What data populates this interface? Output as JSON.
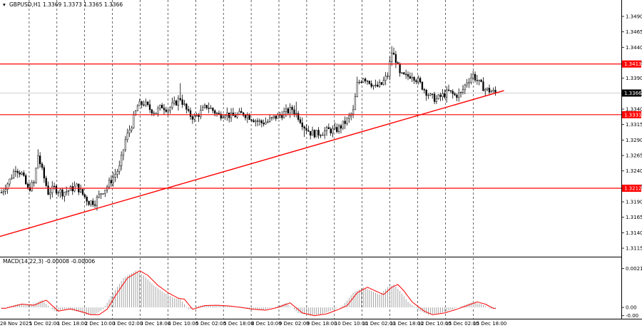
{
  "header": {
    "symbol_label": "GBPUSD,H1",
    "ohlc_label": "1.3369 1.3373 1.3365 1.3366"
  },
  "macd": {
    "label": "MACD(14,22,3) -0.00008 -0.00006"
  },
  "colors": {
    "background": "#ffffff",
    "candle": "#000000",
    "level_line": "#ff0000",
    "trend_line": "#ff0000",
    "grid": "#000000",
    "macd_hist": "#9a9a9a",
    "macd_signal": "#ff0000",
    "current_price_line": "#c0c0c0"
  },
  "chart_data": [
    {
      "type": "candlestick",
      "instrument": "GBPUSD",
      "timeframe": "H1",
      "y_tick_labels": [
        "1.3490",
        "1.3465",
        "1.3440",
        "1.3415",
        "1.3390",
        "1.3365",
        "1.3340",
        "1.3315",
        "1.3290",
        "1.3265",
        "1.3240",
        "1.3215",
        "1.3190",
        "1.3165",
        "1.3140",
        "1.3115"
      ],
      "ylim": [
        1.3107,
        1.3505
      ],
      "x_tick_labels": [
        "28 Nov 2025",
        "1 Dec 02:00",
        "1 Dec 18:00",
        "2 Dec 10:00",
        "3 Dec 02:00",
        "3 Dec 18:00",
        "4 Dec 10:00",
        "5 Dec 02:00",
        "5 Dec 18:00",
        "8 Dec 10:00",
        "9 Dec 02:00",
        "9 Dec 18:00",
        "10 Dec 10:00",
        "11 Dec 02:00",
        "11 Dec 18:00",
        "12 Dec 10:00",
        "15 Dec 02:00",
        "15 Dec 18:00"
      ],
      "horizontal_levels": [
        "1.3413",
        "1.3331",
        "1.3212"
      ],
      "current_price": "1.3366",
      "trend_line": {
        "x": [
          0,
          243
        ],
        "y": [
          1.3134,
          1.3366
        ]
      },
      "anchors": [
        [
          0,
          1.3205
        ],
        [
          4,
          1.3225
        ],
        [
          7,
          1.3245
        ],
        [
          10,
          1.3235
        ],
        [
          13,
          1.321
        ],
        [
          16,
          1.322
        ],
        [
          18,
          1.3265
        ],
        [
          20,
          1.324
        ],
        [
          23,
          1.3205
        ],
        [
          26,
          1.3212
        ],
        [
          30,
          1.3205
        ],
        [
          34,
          1.321
        ],
        [
          37,
          1.3215
        ],
        [
          40,
          1.3202
        ],
        [
          43,
          1.319
        ],
        [
          46,
          1.319
        ],
        [
          49,
          1.3205
        ],
        [
          52,
          1.3215
        ],
        [
          55,
          1.323
        ],
        [
          58,
          1.3245
        ],
        [
          61,
          1.329
        ],
        [
          64,
          1.3315
        ],
        [
          67,
          1.3345
        ],
        [
          70,
          1.335
        ],
        [
          73,
          1.334
        ],
        [
          76,
          1.3335
        ],
        [
          79,
          1.3345
        ],
        [
          82,
          1.334
        ],
        [
          85,
          1.3348
        ],
        [
          88,
          1.3358
        ],
        [
          90,
          1.3345
        ],
        [
          92,
          1.3332
        ],
        [
          95,
          1.3326
        ],
        [
          98,
          1.3335
        ],
        [
          101,
          1.3345
        ],
        [
          104,
          1.3338
        ],
        [
          107,
          1.333
        ],
        [
          110,
          1.3334
        ],
        [
          113,
          1.3328
        ],
        [
          116,
          1.333
        ],
        [
          119,
          1.3333
        ],
        [
          122,
          1.3328
        ],
        [
          125,
          1.3322
        ],
        [
          128,
          1.3318
        ],
        [
          131,
          1.332
        ],
        [
          134,
          1.3326
        ],
        [
          137,
          1.333
        ],
        [
          140,
          1.3335
        ],
        [
          143,
          1.334
        ],
        [
          146,
          1.3328
        ],
        [
          149,
          1.3312
        ],
        [
          152,
          1.3302
        ],
        [
          155,
          1.33
        ],
        [
          158,
          1.3303
        ],
        [
          161,
          1.3306
        ],
        [
          164,
          1.3305
        ],
        [
          167,
          1.3312
        ],
        [
          170,
          1.3322
        ],
        [
          173,
          1.3336
        ],
        [
          175,
          1.338
        ],
        [
          178,
          1.3392
        ],
        [
          181,
          1.3385
        ],
        [
          184,
          1.3375
        ],
        [
          187,
          1.338
        ],
        [
          190,
          1.3395
        ],
        [
          192,
          1.3432
        ],
        [
          194,
          1.342
        ],
        [
          196,
          1.3395
        ],
        [
          199,
          1.3392
        ],
        [
          202,
          1.3396
        ],
        [
          205,
          1.3385
        ],
        [
          208,
          1.3372
        ],
        [
          211,
          1.336
        ],
        [
          214,
          1.3356
        ],
        [
          217,
          1.3362
        ],
        [
          220,
          1.3368
        ],
        [
          223,
          1.3362
        ],
        [
          226,
          1.3365
        ],
        [
          229,
          1.3385
        ],
        [
          232,
          1.3395
        ],
        [
          235,
          1.3382
        ],
        [
          238,
          1.3372
        ],
        [
          241,
          1.3369
        ],
        [
          243,
          1.3366
        ]
      ],
      "spikes": [
        [
          18,
          1.3275
        ],
        [
          43,
          1.3183
        ],
        [
          88,
          1.3382
        ],
        [
          145,
          1.3352
        ],
        [
          149,
          1.3295
        ],
        [
          192,
          1.3442
        ],
        [
          213,
          1.3348
        ],
        [
          232,
          1.3402
        ]
      ]
    },
    {
      "type": "area",
      "name": "MACD(14,22,3)",
      "values": [
        "-0.00008",
        "-0.00006"
      ],
      "y_tick_labels": [
        "0.00212",
        "0.00",
        "-0.00"
      ],
      "ylim": [
        -0.0005,
        0.0023
      ],
      "anchors": [
        [
          0,
          -5e-05
        ],
        [
          8,
          0.00018
        ],
        [
          14,
          0.00012
        ],
        [
          20,
          0.0004
        ],
        [
          26,
          -0.0002
        ],
        [
          32,
          -8e-05
        ],
        [
          38,
          -0.00025
        ],
        [
          42,
          -0.0004
        ],
        [
          46,
          -0.0004
        ],
        [
          50,
          -0.0001
        ],
        [
          55,
          0.0008
        ],
        [
          60,
          0.0016
        ],
        [
          66,
          0.002
        ],
        [
          70,
          0.00175
        ],
        [
          75,
          0.0012
        ],
        [
          80,
          0.0008
        ],
        [
          85,
          0.0005
        ],
        [
          88,
          0.00045
        ],
        [
          92,
          -0.0001
        ],
        [
          98,
          0.0001
        ],
        [
          104,
          0.00012
        ],
        [
          110,
          8e-05
        ],
        [
          116,
          0.0
        ],
        [
          122,
          -0.0001
        ],
        [
          128,
          -0.00015
        ],
        [
          134,
          0.0
        ],
        [
          140,
          0.00025
        ],
        [
          146,
          -0.0003
        ],
        [
          152,
          -0.00045
        ],
        [
          158,
          -0.00035
        ],
        [
          164,
          -0.0001
        ],
        [
          168,
          0.0001
        ],
        [
          173,
          0.0008
        ],
        [
          178,
          0.0011
        ],
        [
          183,
          0.00085
        ],
        [
          186,
          0.0007
        ],
        [
          190,
          0.0011
        ],
        [
          193,
          0.00125
        ],
        [
          196,
          0.0009
        ],
        [
          200,
          0.0003
        ],
        [
          206,
          -0.0002
        ],
        [
          210,
          -0.0004
        ],
        [
          216,
          -0.0003
        ],
        [
          222,
          -0.0001
        ],
        [
          227,
          0.0001
        ],
        [
          232,
          0.0003
        ],
        [
          236,
          0.00018
        ],
        [
          240,
          -5e-05
        ],
        [
          243,
          -8e-05
        ]
      ]
    }
  ]
}
